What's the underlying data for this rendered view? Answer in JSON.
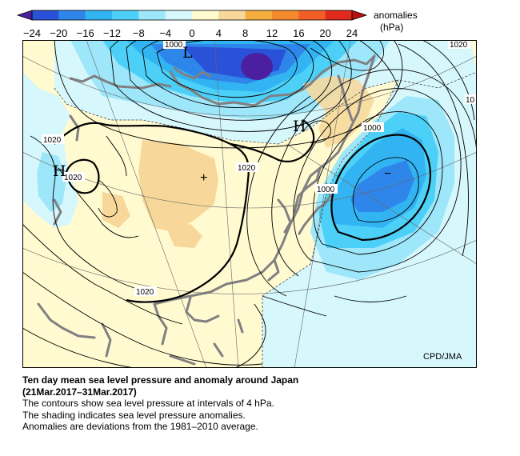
{
  "colorbar": {
    "title_line1": "anomalies",
    "title_line2": "(hPa)",
    "ticks": [
      "−24",
      "−20",
      "−16",
      "−12",
      "−8",
      "−4",
      "0",
      "4",
      "8",
      "12",
      "16",
      "20",
      "24"
    ],
    "bins": [
      {
        "range": "below -24",
        "color": "#4b1fa0"
      },
      {
        "range": "-24 to -20",
        "color": "#2a52d8"
      },
      {
        "range": "-20 to -16",
        "color": "#2f86ea"
      },
      {
        "range": "-16 to -12",
        "color": "#33b4f2"
      },
      {
        "range": "-12 to -8",
        "color": "#4dd0f7"
      },
      {
        "range": "-8 to -4",
        "color": "#9ee7fa"
      },
      {
        "range": "-4 to 0",
        "color": "#d6f7fc"
      },
      {
        "range": "0 to 4",
        "color": "#fffad0"
      },
      {
        "range": "4 to 8",
        "color": "#f7d79a"
      },
      {
        "range": "8 to 12",
        "color": "#f5ad3e"
      },
      {
        "range": "12 to 16",
        "color": "#f58a2c"
      },
      {
        "range": "16 to 20",
        "color": "#f25f26"
      },
      {
        "range": "20 to 24",
        "color": "#e02a1c"
      },
      {
        "range": "above 24",
        "color": "#b81010"
      }
    ]
  },
  "map": {
    "contour_labels": {
      "l1000_top": "1000",
      "l1020_topright": "1020",
      "l10_right": "10",
      "l1000_east": "1000",
      "l1000_east2": "1000",
      "l1020_west1": "1020",
      "l1020_west2": "1020",
      "l1020_center": "1020",
      "l1020_south": "1020"
    },
    "pressure_labels": {
      "low_north": "L",
      "high_west": "H",
      "high_japan": "H"
    },
    "anomaly_signs": {
      "plus_center": "+",
      "minus_east": "−"
    },
    "credit": "CPD/JMA"
  },
  "caption": {
    "title_line1": "Ten day mean sea level pressure and anomaly around Japan",
    "title_line2": "(21Mar.2017–31Mar.2017)",
    "line1": "The contours show sea level pressure at intervals of 4 hPa.",
    "line2": "The shading indicates sea level pressure anomalies.",
    "line3": "Anomalies are deviations from the 1981–2010 average."
  }
}
